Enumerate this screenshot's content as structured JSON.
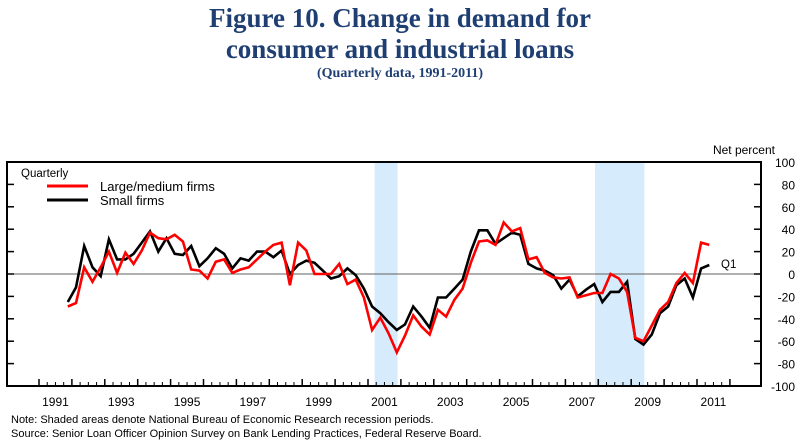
{
  "title": {
    "line1": "Figure 10.  Change in demand for",
    "line2": "consumer and industrial loans",
    "subtitle": "(Quarterly data, 1991-2011)"
  },
  "notes": {
    "note": "Note:  Shaded areas denote National Bureau of Economic Research recession periods.",
    "source": "Source:  Senior Loan Officer Opinion Survey on Bank Lending Practices, Federal Reserve Board."
  },
  "colors": {
    "title": "#1f3f73",
    "large_medium": "#ff0000",
    "small": "#000000",
    "recession": "#d6ecfc"
  },
  "chart_data": {
    "type": "line",
    "title": "Change in demand for consumer and industrial loans",
    "frequency_label": "Quarterly",
    "ylabel": "Net percent",
    "xlabel": "",
    "ylim": [
      -100,
      100
    ],
    "yticks": [
      100,
      80,
      60,
      40,
      20,
      0,
      -20,
      -40,
      -60,
      -80,
      -100
    ],
    "xlim": [
      1991,
      2012
    ],
    "xtick_labels": [
      "1991",
      "1993",
      "1995",
      "1997",
      "1999",
      "2001",
      "2003",
      "2005",
      "2007",
      "2009",
      "2011"
    ],
    "start_period": "1991Q4",
    "last_point_label": "Q1",
    "legend": {
      "placement": "top-left",
      "entries": [
        "Large/medium firms",
        "Small firms"
      ]
    },
    "recessions": [
      [
        2001.2,
        2001.9
      ],
      [
        2007.9,
        2009.4
      ]
    ],
    "zero_line": true,
    "series": [
      {
        "name": "Large/medium firms",
        "color": "#ff0000",
        "values": [
          -29,
          -26,
          6,
          -7,
          6,
          20,
          1,
          19,
          9,
          21,
          37,
          32,
          31,
          35,
          29,
          4,
          3,
          -4,
          11,
          13,
          1,
          4,
          6,
          13,
          20,
          26,
          28,
          -10,
          28,
          21,
          0,
          0,
          0,
          9,
          -9,
          -5,
          -21,
          -50,
          -39,
          -53,
          -70,
          -55,
          -37,
          -47,
          -54,
          -32,
          -38,
          -23,
          -13,
          10,
          29,
          30,
          26,
          46,
          38,
          41,
          13,
          15,
          1,
          -3,
          -4,
          -3,
          -21,
          -19,
          -17,
          -17,
          0,
          -4,
          -16,
          -57,
          -60,
          -46,
          -32,
          -25,
          -8,
          1,
          -8,
          28,
          26
        ]
      },
      {
        "name": "Small firms",
        "color": "#000000",
        "values": [
          -25,
          -12,
          25,
          6,
          -2,
          31,
          13,
          13,
          18,
          28,
          38,
          20,
          32,
          18,
          17,
          25,
          7,
          14,
          23,
          18,
          5,
          14,
          12,
          20,
          20,
          15,
          21,
          0,
          8,
          12,
          10,
          3,
          -4,
          -2,
          5,
          -1,
          -13,
          -29,
          -35,
          -43,
          -50,
          -45,
          -29,
          -38,
          -48,
          -21,
          -21,
          -13,
          -5,
          20,
          39,
          39,
          27,
          32,
          37,
          35,
          9,
          5,
          3,
          -1,
          -13,
          -5,
          -20,
          -14,
          -9,
          -25,
          -16,
          -16,
          -7,
          -58,
          -63,
          -54,
          -35,
          -29,
          -10,
          -4,
          -21,
          5,
          8
        ]
      }
    ]
  }
}
